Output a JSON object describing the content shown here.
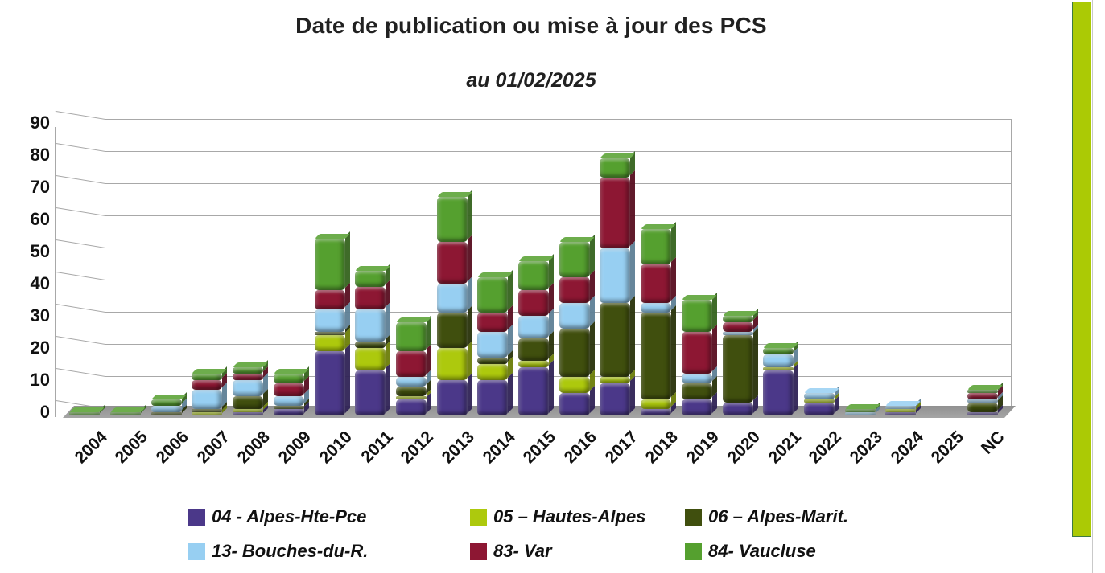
{
  "title": "Date de publication ou mise à jour des PCS",
  "subtitle": "au 01/02/2025",
  "chart_data": {
    "type": "bar",
    "stacked": true,
    "title": "Date de publication ou mise à jour des PCS",
    "subtitle": "au 01/02/2025",
    "xlabel": "",
    "ylabel": "",
    "ylim": [
      0,
      90
    ],
    "ytick_step": 10,
    "yticks": [
      0,
      10,
      20,
      30,
      40,
      50,
      60,
      70,
      80,
      90
    ],
    "grid": true,
    "legend_position": "bottom",
    "categories": [
      "2004",
      "2005",
      "2006",
      "2007",
      "2008",
      "2009",
      "2010",
      "2011",
      "2012",
      "2013",
      "2014",
      "2015",
      "2016",
      "2017",
      "2018",
      "2019",
      "2020",
      "2021",
      "2022",
      "2023",
      "2024",
      "2025",
      "NC"
    ],
    "series": [
      {
        "name": "04 - Alpes-Hte-Pce",
        "color": "#4b3889",
        "values": [
          0,
          0,
          0,
          0,
          1,
          2,
          20,
          14,
          5,
          11,
          11,
          15,
          7,
          10,
          2,
          5,
          4,
          14,
          4,
          0,
          1,
          0,
          1
        ]
      },
      {
        "name": "05 – Hautes-Alpes",
        "color": "#adc90d",
        "values": [
          0,
          0,
          0,
          1,
          1,
          0,
          5,
          7,
          1,
          10,
          5,
          2,
          5,
          2,
          3,
          0,
          0,
          1,
          1,
          0,
          1,
          0,
          0
        ]
      },
      {
        "name": "06 – Alpes-Marit.",
        "color": "#404f0e",
        "values": [
          0,
          0,
          1,
          1,
          4,
          1,
          1,
          2,
          3,
          11,
          2,
          7,
          15,
          23,
          27,
          5,
          21,
          0,
          0,
          0,
          0,
          0,
          3
        ]
      },
      {
        "name": "13- Bouches-du-R.",
        "color": "#97cff2",
        "values": [
          0,
          0,
          2,
          6,
          5,
          3,
          7,
          10,
          3,
          9,
          8,
          7,
          8,
          17,
          3,
          3,
          1,
          4,
          2,
          1,
          1,
          0,
          1
        ]
      },
      {
        "name": "83- Var",
        "color": "#8d1733",
        "values": [
          0,
          0,
          0,
          3,
          2,
          4,
          6,
          7,
          8,
          13,
          6,
          8,
          8,
          22,
          12,
          13,
          3,
          0,
          0,
          0,
          0,
          0,
          2
        ]
      },
      {
        "name": "84- Vaucluse",
        "color": "#55a02f",
        "values": [
          1,
          1,
          2,
          2,
          2,
          3,
          16,
          5,
          9,
          14,
          11,
          9,
          11,
          6,
          11,
          10,
          2,
          2,
          0,
          1,
          0,
          0,
          1
        ]
      }
    ],
    "totals": [
      1,
      1,
      5,
      13,
      15,
      13,
      55,
      45,
      29,
      68,
      43,
      48,
      54,
      80,
      58,
      36,
      31,
      21,
      7,
      2,
      3,
      0,
      8
    ]
  },
  "decor": {
    "side_strip_color": "#abca05",
    "floor_color": "#9d9d9d",
    "gridline_color": "#a8a8a8"
  }
}
